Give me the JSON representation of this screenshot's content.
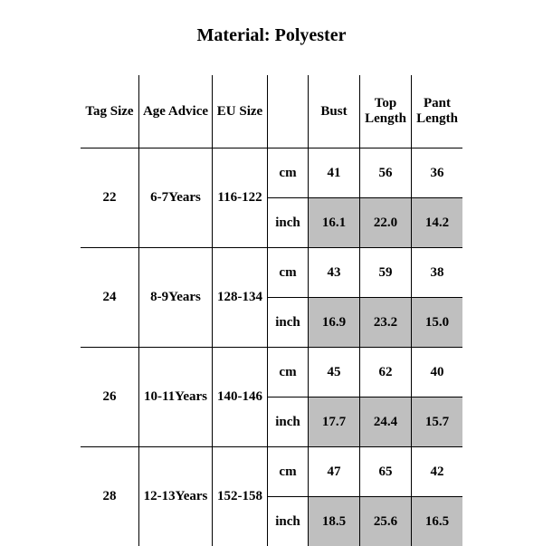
{
  "title": "Material: Polyester",
  "columns": {
    "tag": "Tag Size",
    "age": "Age Advice",
    "eu": "EU Size",
    "unit": "",
    "bust": "Bust",
    "top": "Top Length",
    "pant": "Pant Length"
  },
  "unit_cm": "cm",
  "unit_in": "inch",
  "shade_color": "#bfbfbf",
  "rows": [
    {
      "tag": "22",
      "age": "6-7Years",
      "eu": "116-122",
      "cm": {
        "bust": "41",
        "top": "56",
        "pant": "36"
      },
      "inch": {
        "bust": "16.1",
        "top": "22.0",
        "pant": "14.2"
      }
    },
    {
      "tag": "24",
      "age": "8-9Years",
      "eu": "128-134",
      "cm": {
        "bust": "43",
        "top": "59",
        "pant": "38"
      },
      "inch": {
        "bust": "16.9",
        "top": "23.2",
        "pant": "15.0"
      }
    },
    {
      "tag": "26",
      "age": "10-11Years",
      "eu": "140-146",
      "cm": {
        "bust": "45",
        "top": "62",
        "pant": "40"
      },
      "inch": {
        "bust": "17.7",
        "top": "24.4",
        "pant": "15.7"
      }
    },
    {
      "tag": "28",
      "age": "12-13Years",
      "eu": "152-158",
      "cm": {
        "bust": "47",
        "top": "65",
        "pant": "42"
      },
      "inch": {
        "bust": "18.5",
        "top": "25.6",
        "pant": "16.5"
      }
    }
  ]
}
